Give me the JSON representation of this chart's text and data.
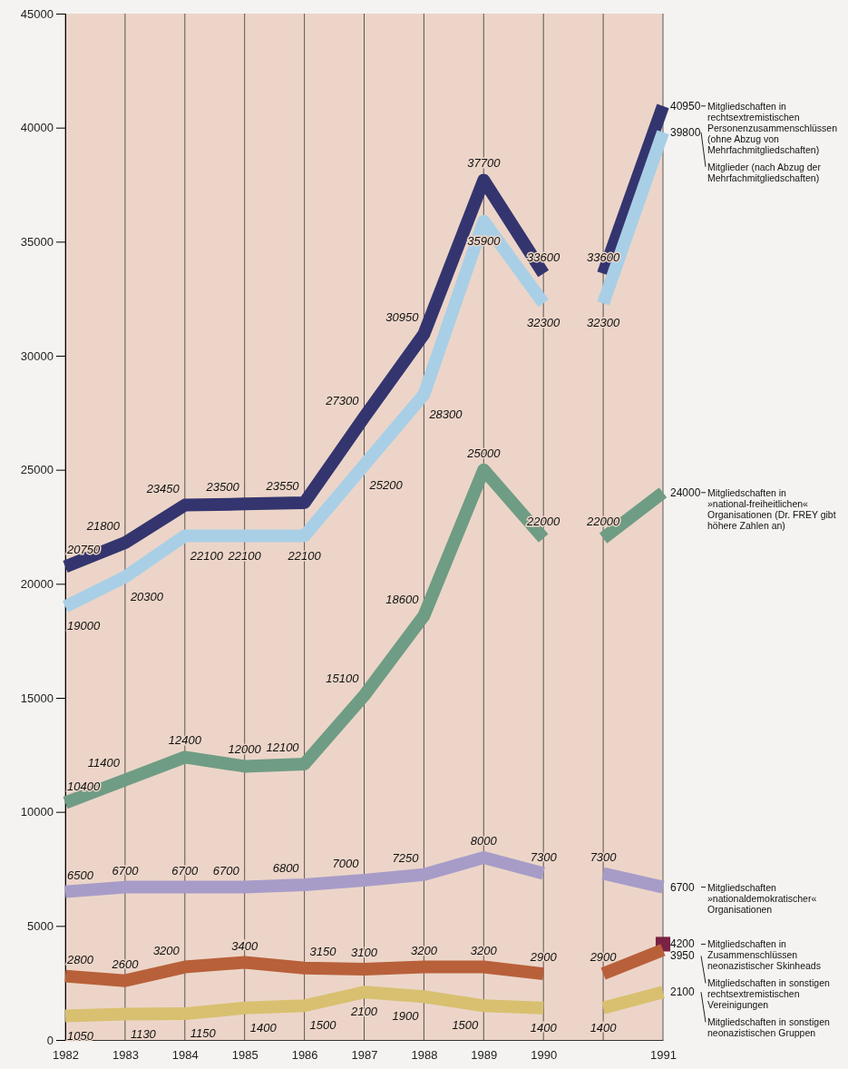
{
  "chart_data": {
    "type": "line",
    "categories": [
      "1982",
      "1983",
      "1984",
      "1985",
      "1986",
      "1987",
      "1988",
      "1989",
      "1990",
      null,
      "1991"
    ],
    "ylim": [
      0,
      45000
    ],
    "yticks": [
      0,
      5000,
      10000,
      15000,
      20000,
      25000,
      30000,
      35000,
      40000,
      45000
    ],
    "grid": "x",
    "data_labels": true,
    "series": [
      {
        "color": "#34356f",
        "values": [
          20750,
          21800,
          23450,
          23500,
          23550,
          27300,
          30950,
          37700,
          33600,
          null,
          null
        ]
      },
      {
        "name": "Mitgliedschaften in rechtsextremistischen Personenzusammenschlüssen (ohne Abzug von Mehrfachmitgliedschaften)",
        "color": "#34356f",
        "values": [
          null,
          null,
          null,
          null,
          null,
          null,
          null,
          null,
          null,
          33600,
          40950
        ]
      },
      {
        "color": "#a9cfe6",
        "values": [
          19000,
          20300,
          22100,
          22100,
          22100,
          25200,
          28300,
          35900,
          32300,
          null,
          null
        ]
      },
      {
        "name": "Mitglieder (nach Abzug der Mehrfachmitgliedschaften)",
        "color": "#a9cfe6",
        "values": [
          null,
          null,
          null,
          null,
          null,
          null,
          null,
          null,
          null,
          32300,
          39800
        ]
      },
      {
        "color": "#6f9c84",
        "values": [
          10400,
          11400,
          12400,
          12000,
          12100,
          15100,
          18600,
          25000,
          22000,
          null,
          null
        ]
      },
      {
        "name": "Mitgliedschaften in »national-freiheitlichen« Organisationen (Dr. FREY gibt höhere Zahlen an)",
        "color": "#6f9c84",
        "values": [
          null,
          null,
          null,
          null,
          null,
          null,
          null,
          null,
          null,
          22000,
          24000
        ]
      },
      {
        "color": "#a79cc8",
        "values": [
          6500,
          6700,
          6700,
          6700,
          6800,
          7000,
          7250,
          8000,
          7300,
          null,
          null
        ]
      },
      {
        "name": "Mitgliedschaften »nationaldemokratischer« Organisationen",
        "color": "#a79cc8",
        "values": [
          null,
          null,
          null,
          null,
          null,
          null,
          null,
          null,
          null,
          7300,
          6700
        ]
      },
      {
        "name": "Mitgliedschaften in Zusammenschlüssen neonazistischer Skinheads",
        "type": "scatter",
        "marker": "square",
        "color": "#7a2245",
        "values": [
          null,
          null,
          null,
          null,
          null,
          null,
          null,
          null,
          null,
          null,
          4200
        ]
      },
      {
        "color": "#b8603a",
        "values": [
          2800,
          2600,
          3200,
          3400,
          3150,
          3100,
          3200,
          3200,
          2900,
          null,
          null
        ]
      },
      {
        "name": "Mitgliedschaften in sonstigen rechtsextremistischen Vereinigungen",
        "color": "#b8603a",
        "values": [
          null,
          null,
          null,
          null,
          null,
          null,
          null,
          null,
          null,
          2900,
          3950
        ]
      },
      {
        "color": "#d8c070",
        "values": [
          1050,
          1130,
          1150,
          1400,
          1500,
          2100,
          1900,
          1500,
          1400,
          null,
          null
        ]
      },
      {
        "name": "Mitgliedschaften in sonstigen neonazistischen Gruppen",
        "color": "#d8c070",
        "values": [
          null,
          null,
          null,
          null,
          null,
          null,
          null,
          null,
          null,
          1400,
          2100
        ]
      }
    ]
  }
}
